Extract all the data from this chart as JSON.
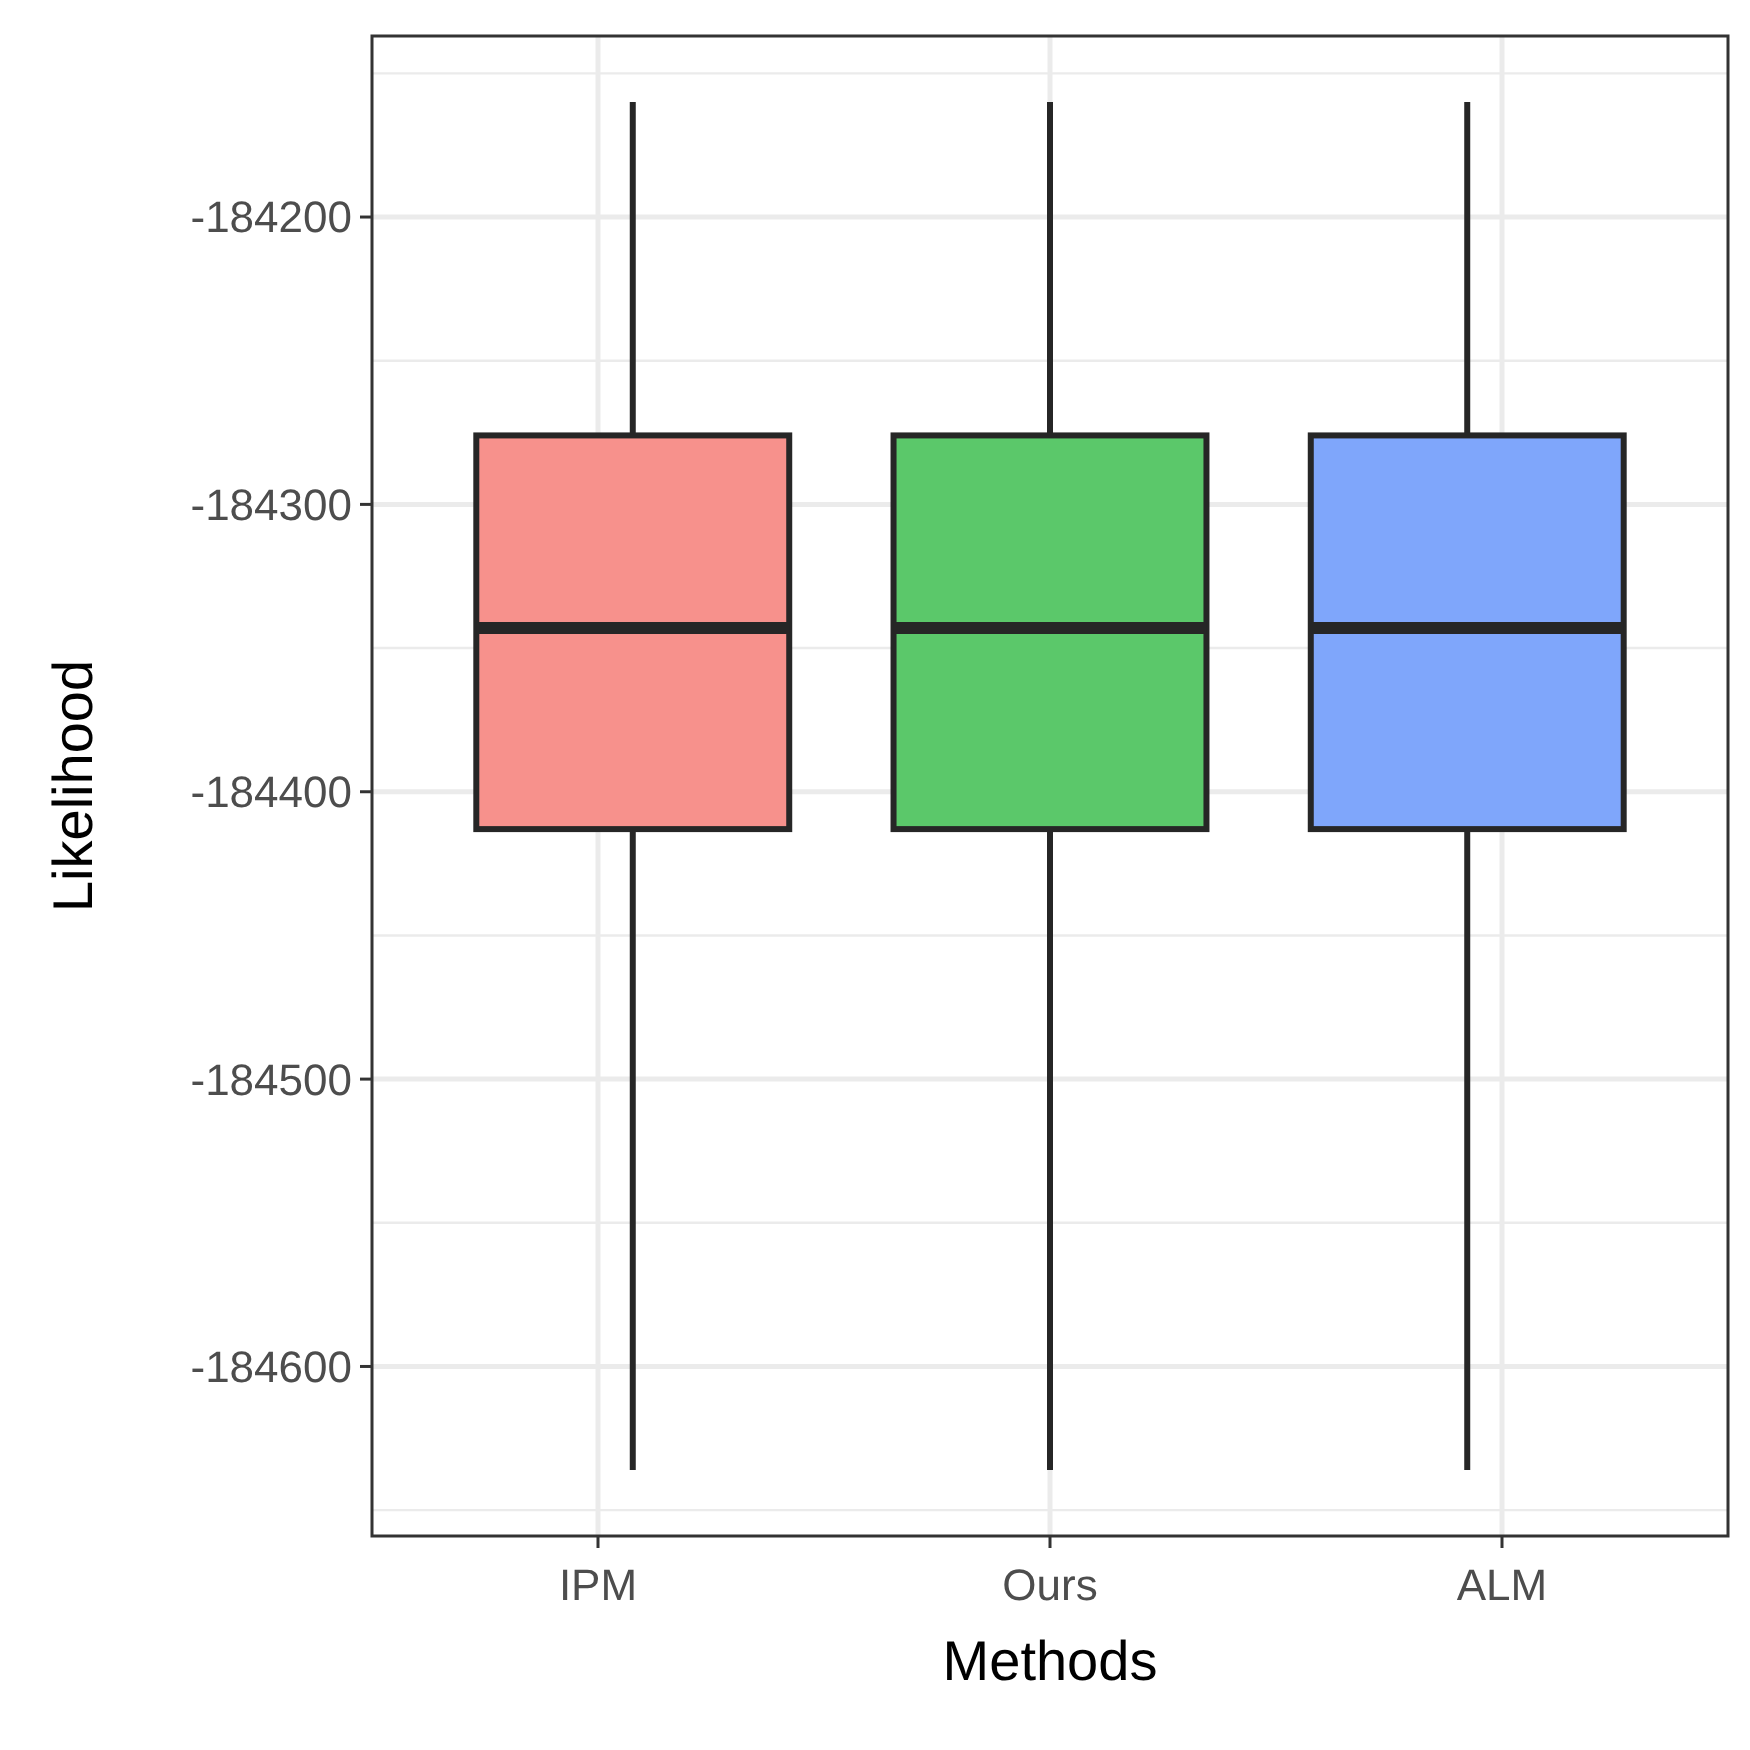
{
  "chart_data": {
    "type": "box",
    "xlabel": "Methods",
    "ylabel": "Likelihood",
    "categories": [
      "IPM",
      "Ours",
      "ALM"
    ],
    "boxes": [
      {
        "low": -184636,
        "q1": -184413,
        "median": -184343,
        "q3": -184276,
        "high": -184160
      },
      {
        "low": -184636,
        "q1": -184413,
        "median": -184343,
        "q3": -184276,
        "high": -184160
      },
      {
        "low": -184636,
        "q1": -184413,
        "median": -184343,
        "q3": -184276,
        "high": -184160
      }
    ],
    "colors": [
      "#f7918c",
      "#5bc86a",
      "#7fa6fb"
    ],
    "ylim": [
      -184659,
      -184137
    ],
    "yticks": [
      -184600,
      -184500,
      -184400,
      -184300,
      -184200
    ],
    "grid": true
  }
}
